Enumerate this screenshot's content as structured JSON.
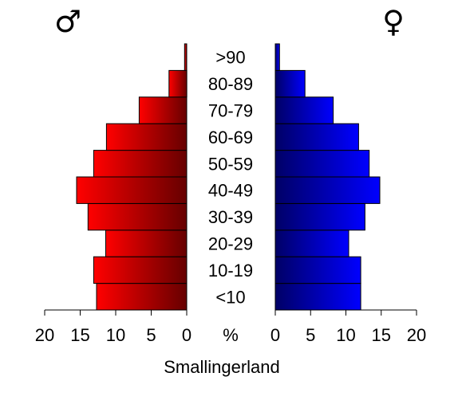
{
  "chart_data": {
    "type": "bar",
    "orientation": "horizontal-population-pyramid",
    "title": "Smallingerland",
    "unit_label": "%",
    "left_symbol": "♂",
    "right_symbol": "♀",
    "categories": [
      "<10",
      "10-19",
      "20-29",
      "30-39",
      "40-49",
      "50-59",
      "60-69",
      "70-79",
      "80-89",
      ">90"
    ],
    "series": [
      {
        "values": [
          12.7,
          13.1,
          11.4,
          13.9,
          15.5,
          13.1,
          11.3,
          6.7,
          2.5,
          0.3
        ],
        "color_light": "#ff0000",
        "color_dark": "#660000"
      },
      {
        "values": [
          12.1,
          12.1,
          10.4,
          12.7,
          14.8,
          13.3,
          11.8,
          8.2,
          4.2,
          0.6
        ],
        "color_light": "#0000ff",
        "color_dark": "#000066"
      }
    ],
    "xlim": [
      0,
      20
    ],
    "ticks": [
      "20",
      "15",
      "10",
      "5",
      "0",
      "0",
      "5",
      "10",
      "15",
      "20"
    ]
  }
}
